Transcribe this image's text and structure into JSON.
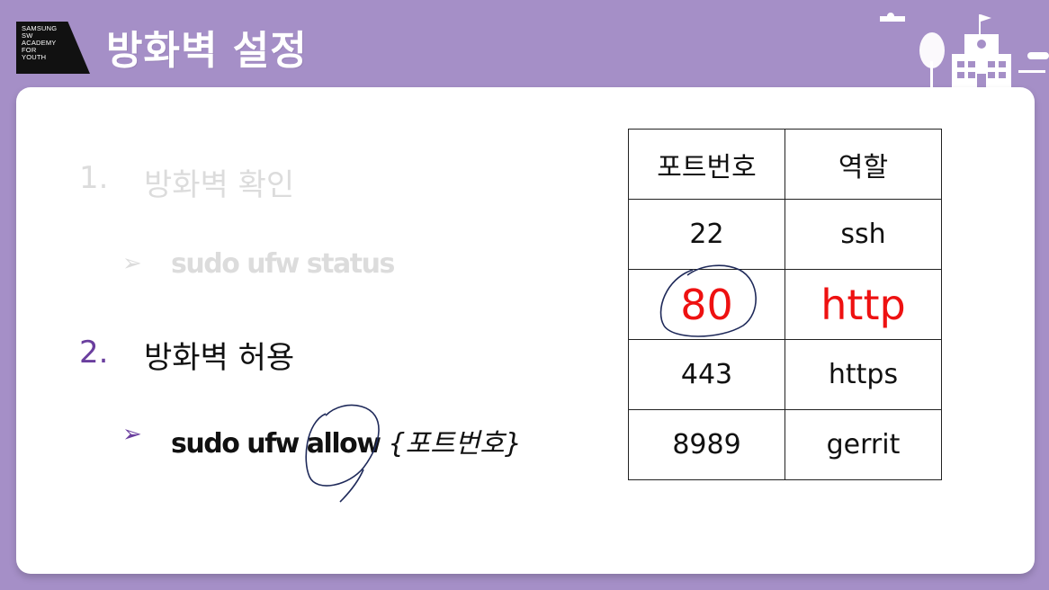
{
  "logo": {
    "lines": [
      "SAMSUNG",
      "SW",
      "ACADEMY",
      "FOR",
      "YOUTH"
    ]
  },
  "slide_title": "방화벽 설정",
  "steps": [
    {
      "number": "1.",
      "title": "방화벽 확인",
      "command": "sudo ufw status",
      "param": ""
    },
    {
      "number": "2.",
      "title": "방화벽 허용",
      "command": "sudo ufw allow",
      "param": "{포트번호}"
    }
  ],
  "arrow_glyph": "➢",
  "table": {
    "headers": [
      "포트번호",
      "역할"
    ],
    "rows": [
      [
        "22",
        "ssh"
      ],
      [
        "80",
        "http"
      ],
      [
        "443",
        "https"
      ],
      [
        "8989",
        "gerrit"
      ]
    ],
    "highlight_row": 1
  },
  "colors": {
    "background": "#a58fc7",
    "accent_purple": "#6a3e9e",
    "highlight_red": "#ee1111",
    "annotation_ink": "#1f2a5a"
  }
}
